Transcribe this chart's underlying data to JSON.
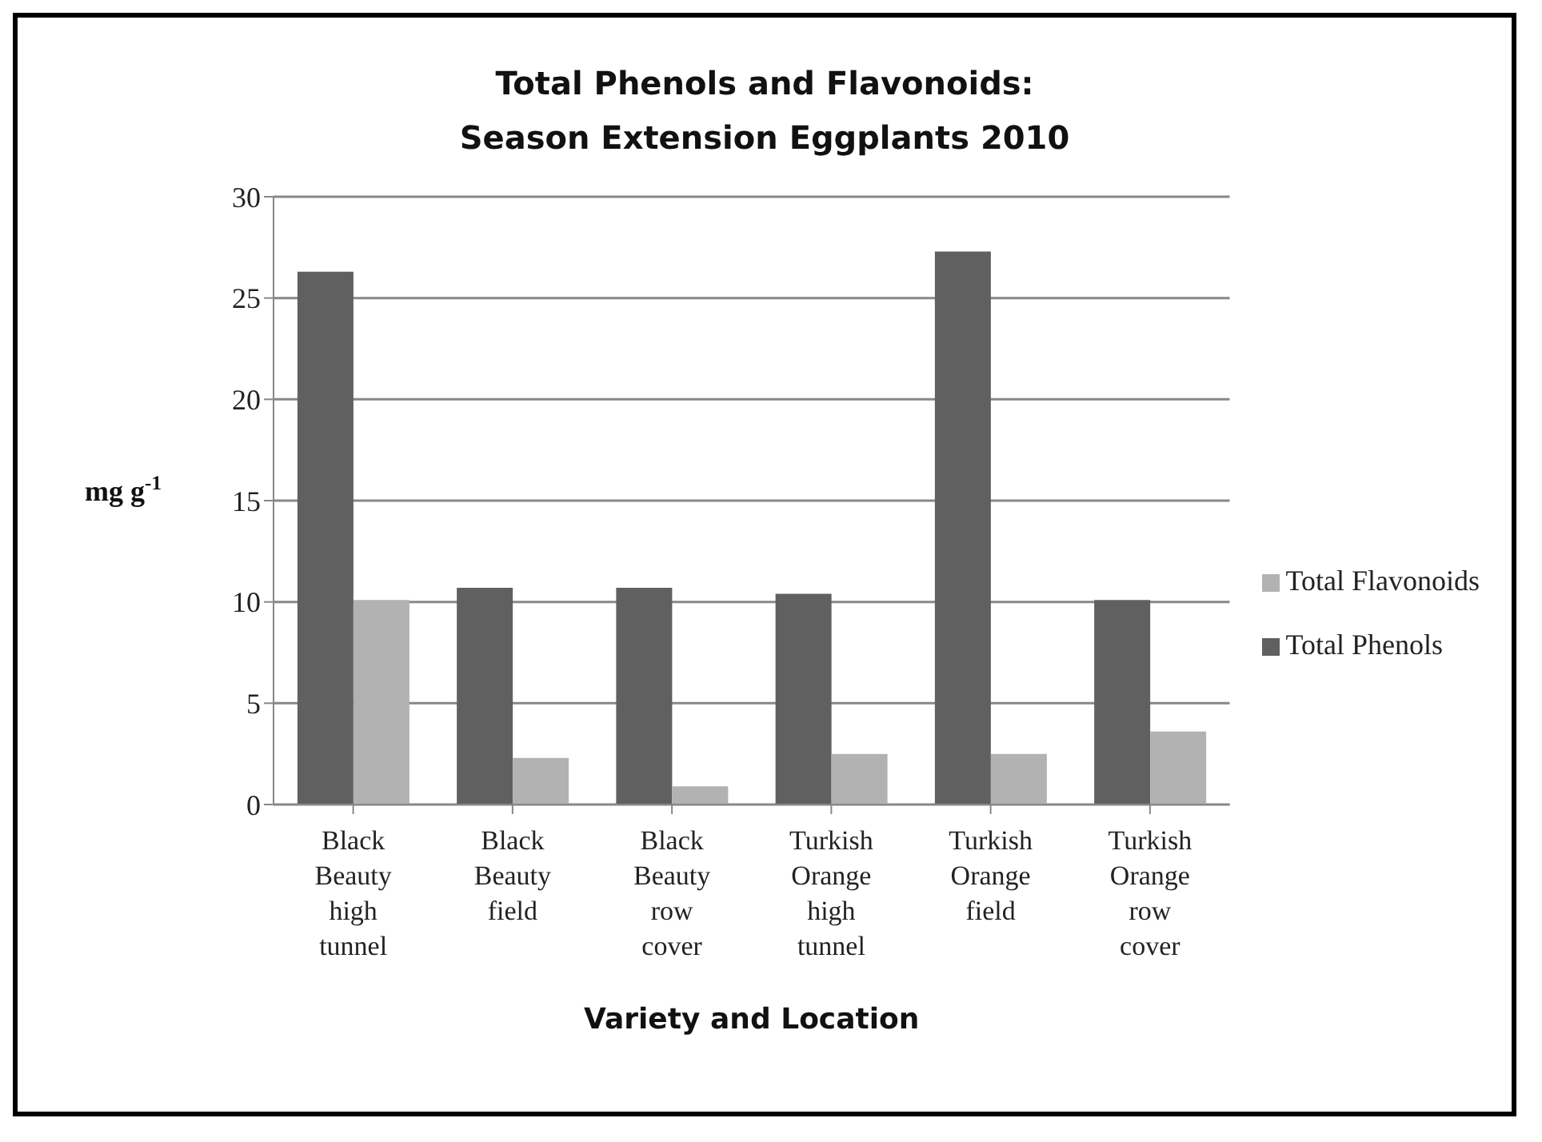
{
  "chart_data": {
    "type": "bar",
    "title": "Total Phenols and Flavonoids:\nSeason Extension Eggplants 2010",
    "xlabel": "Variety and Location",
    "ylabel": "mg g$^{-1}$",
    "categories": [
      "Black Beauty high tunnel",
      "Black Beauty field",
      "Black Beauty row cover",
      "Turkish Orange high tunnel",
      "Turkish Orange field",
      "Turkish Orange row cover"
    ],
    "series": [
      {
        "name": "Total Phenols",
        "color": "#606060",
        "values": [
          26.3,
          10.7,
          10.7,
          10.4,
          27.3,
          10.1
        ]
      },
      {
        "name": "Total Flavonoids",
        "color": "#b2b2b2",
        "values": [
          10.1,
          2.3,
          0.9,
          2.5,
          2.5,
          3.6
        ]
      }
    ],
    "ylim": [
      0,
      30
    ],
    "yticks": [
      0,
      5,
      10,
      15,
      20,
      25,
      30
    ],
    "grid": "y",
    "legend": "right"
  }
}
